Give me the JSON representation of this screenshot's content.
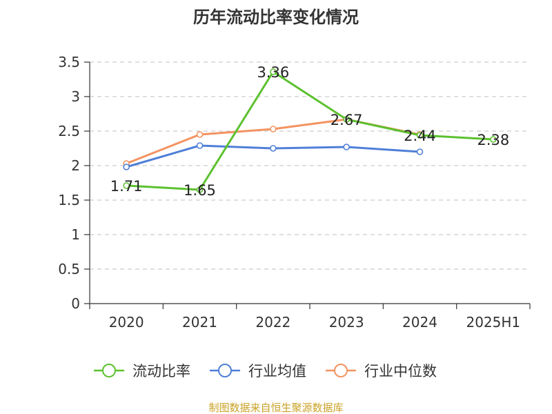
{
  "chart_data": {
    "type": "line",
    "title": "历年流动比率变化情况",
    "categories": [
      "2020",
      "2021",
      "2022",
      "2023",
      "2024",
      "2025H1"
    ],
    "ylim": [
      0,
      3.5
    ],
    "yticks": [
      "0",
      "0.5",
      "1",
      "1.5",
      "2",
      "2.5",
      "3",
      "3.5"
    ],
    "grid": true,
    "legend_position": "bottom",
    "series": [
      {
        "name": "流动比率",
        "color": "#5cc12f",
        "values": [
          1.71,
          1.65,
          3.36,
          2.67,
          2.44,
          2.38
        ],
        "labels": [
          "1.71",
          "1.65",
          "3.36",
          "2.67",
          "2.44",
          "2.38"
        ]
      },
      {
        "name": "行业均值",
        "color": "#4f7fd8",
        "values": [
          1.98,
          2.29,
          2.25,
          2.27,
          2.2,
          null
        ]
      },
      {
        "name": "行业中位数",
        "color": "#f39361",
        "values": [
          2.03,
          2.45,
          2.53,
          2.67,
          2.45,
          null
        ]
      }
    ]
  },
  "footer": "制图数据来自恒生聚源数据库"
}
